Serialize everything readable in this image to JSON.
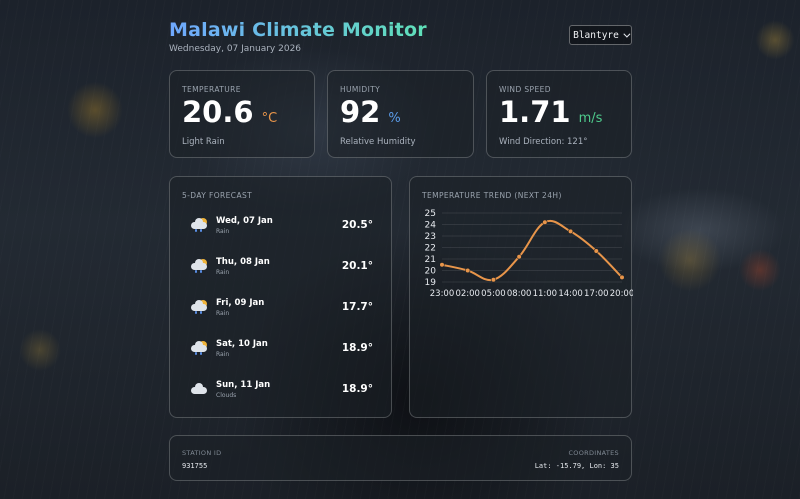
{
  "header": {
    "title": "Malawi Climate Monitor",
    "date": "Wednesday, 07 January 2026",
    "city": "Blantyre"
  },
  "stats": [
    {
      "label": "TEMPERATURE",
      "value": "20.6",
      "unit": "°C",
      "sub": "Light Rain",
      "unit_color": "#e8954a"
    },
    {
      "label": "HUMIDITY",
      "value": "92",
      "unit": "%",
      "sub": "Relative Humidity",
      "unit_color": "#5a9ce8"
    },
    {
      "label": "WIND SPEED",
      "value": "1.71",
      "unit": "m/s",
      "sub": "Wind Direction: 121°",
      "unit_color": "#4ecb8c"
    }
  ],
  "forecast": {
    "label": "5-DAY FORECAST",
    "days": [
      {
        "day": "Wed, 07 Jan",
        "condition": "Rain",
        "temp": "20.5°",
        "icon": "rain-icon"
      },
      {
        "day": "Thu, 08 Jan",
        "condition": "Rain",
        "temp": "20.1°",
        "icon": "rain-icon"
      },
      {
        "day": "Fri, 09 Jan",
        "condition": "Rain",
        "temp": "17.7°",
        "icon": "rain-icon"
      },
      {
        "day": "Sat, 10 Jan",
        "condition": "Rain",
        "temp": "18.9°",
        "icon": "rain-icon"
      },
      {
        "day": "Sun, 11 Jan",
        "condition": "Clouds",
        "temp": "18.9°",
        "icon": "cloud-icon"
      }
    ]
  },
  "trend": {
    "label": "TEMPERATURE TREND (NEXT 24H)"
  },
  "chart_data": {
    "type": "line",
    "x": [
      "23:00",
      "02:00",
      "05:00",
      "08:00",
      "11:00",
      "14:00",
      "17:00",
      "20:00"
    ],
    "values": [
      20.5,
      20.0,
      19.2,
      21.2,
      24.2,
      23.4,
      21.7,
      19.4
    ],
    "ylim": [
      19,
      25
    ],
    "yticks": [
      19,
      20,
      21,
      22,
      23,
      24,
      25
    ],
    "color": "#e8954a",
    "grid": true
  },
  "footer": {
    "station_label": "STATION ID",
    "station_id": "931755",
    "coords_label": "COORDINATES",
    "coords": "Lat: -15.79, Lon: 35"
  }
}
